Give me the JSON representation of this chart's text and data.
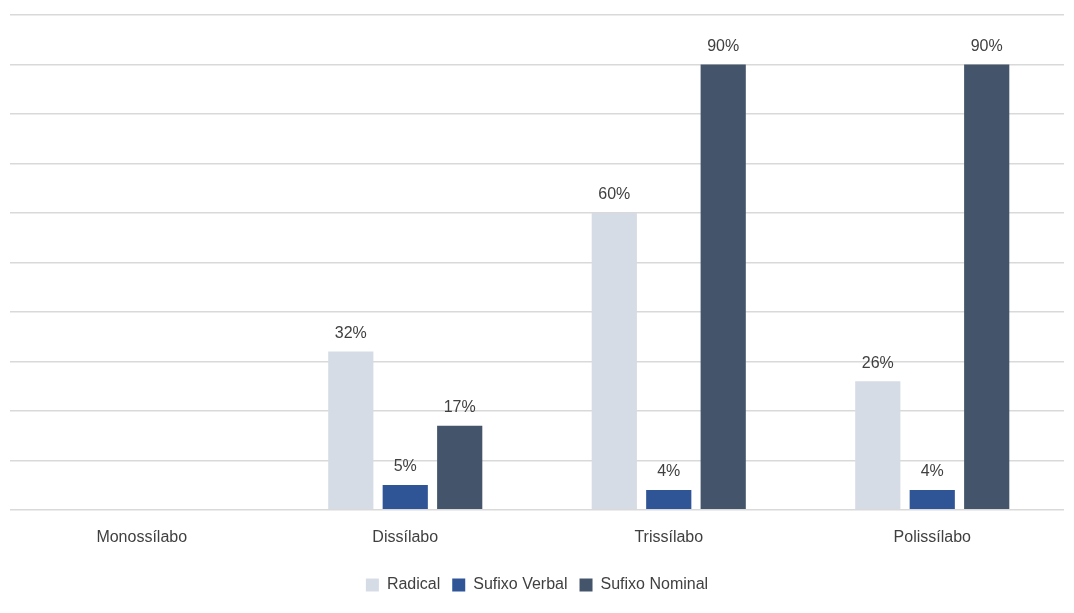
{
  "chart_data": {
    "type": "bar",
    "categories": [
      "Monossílabo",
      "Dissílabo",
      "Trissílabo",
      "Polissílabo"
    ],
    "series": [
      {
        "name": "Radical",
        "color": "#d6dce5",
        "values": [
          null,
          32,
          60,
          26
        ],
        "value_labels": [
          null,
          "32%",
          "60%",
          "26%"
        ]
      },
      {
        "name": "Sufixo Verbal",
        "color": "#2f5597",
        "values": [
          null,
          5,
          4,
          4
        ],
        "value_labels": [
          null,
          "5%",
          "4%",
          "4%"
        ]
      },
      {
        "name": "Sufixo Nominal",
        "color": "#44546a",
        "values": [
          null,
          17,
          90,
          90
        ],
        "value_labels": [
          null,
          "17%",
          "90%",
          "90%"
        ]
      }
    ],
    "ylim": [
      0,
      100
    ],
    "yticks": [
      0,
      10,
      20,
      30,
      40,
      50,
      60,
      70,
      80,
      90,
      100
    ],
    "tick_labels": "x",
    "grid": "y",
    "legend": "bottom"
  }
}
